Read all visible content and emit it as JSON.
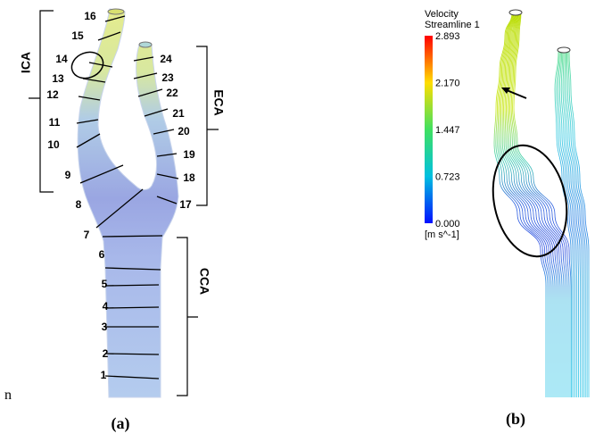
{
  "panel_a": {
    "sections": [
      "1",
      "2",
      "3",
      "4",
      "5",
      "6",
      "7",
      "8",
      "9",
      "10",
      "11",
      "12",
      "13",
      "14",
      "15",
      "16",
      "17",
      "18",
      "19",
      "20",
      "21",
      "22",
      "23",
      "24"
    ],
    "brackets": {
      "ica": "ICA",
      "eca": "ECA",
      "cca": "CCA"
    },
    "caption": "(a)"
  },
  "stray_text": "n",
  "panel_b": {
    "legend_title": "Velocity",
    "legend_subtitle": "Streamline 1",
    "ticks": [
      "2.893",
      "2.170",
      "1.447",
      "0.723",
      "0.000"
    ],
    "unit": "[m s^-1]",
    "caption": "(b)"
  }
}
